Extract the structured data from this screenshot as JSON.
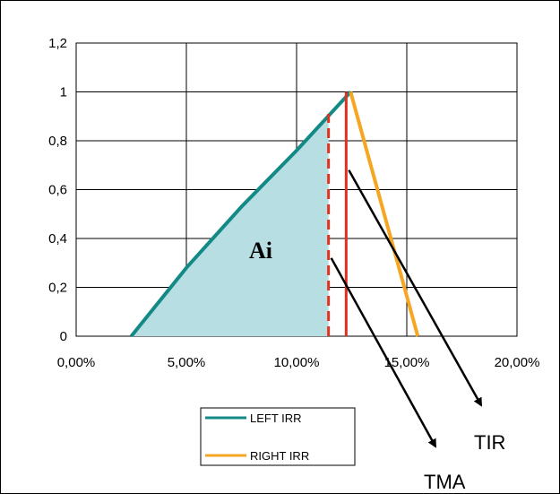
{
  "chart_data": {
    "type": "line",
    "title": "",
    "xlabel": "",
    "ylabel": "",
    "xlim": [
      0,
      0.2
    ],
    "ylim": [
      0,
      1.2
    ],
    "x_ticks": [
      0,
      0.05,
      0.1,
      0.15,
      0.2
    ],
    "x_tick_labels": [
      "0,00%",
      "5,00%",
      "10,00%",
      "15,00%",
      "20,00%"
    ],
    "y_ticks": [
      0,
      0.2,
      0.4,
      0.6,
      0.8,
      1.0,
      1.2
    ],
    "y_tick_labels": [
      "0",
      "0,2",
      "0,4",
      "0,6",
      "0,8",
      "1",
      "1,2"
    ],
    "grid": true,
    "legend_position": "bottom-center",
    "series": [
      {
        "name": "LEFT IRR",
        "color": "#138a86",
        "points": [
          [
            0.025,
            0
          ],
          [
            0.05,
            0.28
          ],
          [
            0.075,
            0.53
          ],
          [
            0.1,
            0.76
          ],
          [
            0.1245,
            1.0
          ]
        ]
      },
      {
        "name": "RIGHT IRR",
        "color": "#f6a623",
        "points": [
          [
            0.1245,
            1.0
          ],
          [
            0.155,
            0
          ]
        ]
      }
    ],
    "shaded_region": {
      "label": "Ai",
      "color": "#b7dfe3",
      "x_from": 0.025,
      "x_to": 0.1145
    },
    "vertical_lines": [
      {
        "x": 0.1145,
        "y_max": 0.91,
        "style": "dashed",
        "color": "#e0301e"
      },
      {
        "x": 0.1225,
        "y_max": 1.0,
        "style": "solid",
        "color": "#e0301e"
      }
    ],
    "annotations": [
      {
        "text": "TIR",
        "target_line": 1
      },
      {
        "text": "TMA",
        "target_line": 0
      }
    ]
  }
}
